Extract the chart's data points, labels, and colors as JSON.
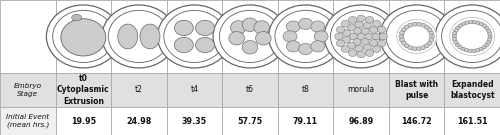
{
  "stages": [
    "Embryo\nStage",
    "t0\nCytoplasmic\nExtrusion",
    "t2",
    "t4",
    "t6",
    "t8",
    "morula",
    "Blast with\npulse",
    "Expanded\nblastocyst"
  ],
  "values": [
    "Initial Event\n(mean hrs.)",
    "19.95",
    "24.98",
    "39.35",
    "57.75",
    "79.11",
    "96.89",
    "146.72",
    "161.51"
  ],
  "n_cols": 9,
  "border_color": "#aaaaaa",
  "cell_fill": "#cccccc",
  "cell_edge": "#555555",
  "ring_color": "#666666",
  "text_color": "#111111",
  "row1_bg": "#e8e8e8",
  "row2_bg": "#ffffff",
  "bold_stages": [
    1,
    7,
    8
  ],
  "figsize": [
    5.0,
    1.35
  ],
  "dpi": 100
}
